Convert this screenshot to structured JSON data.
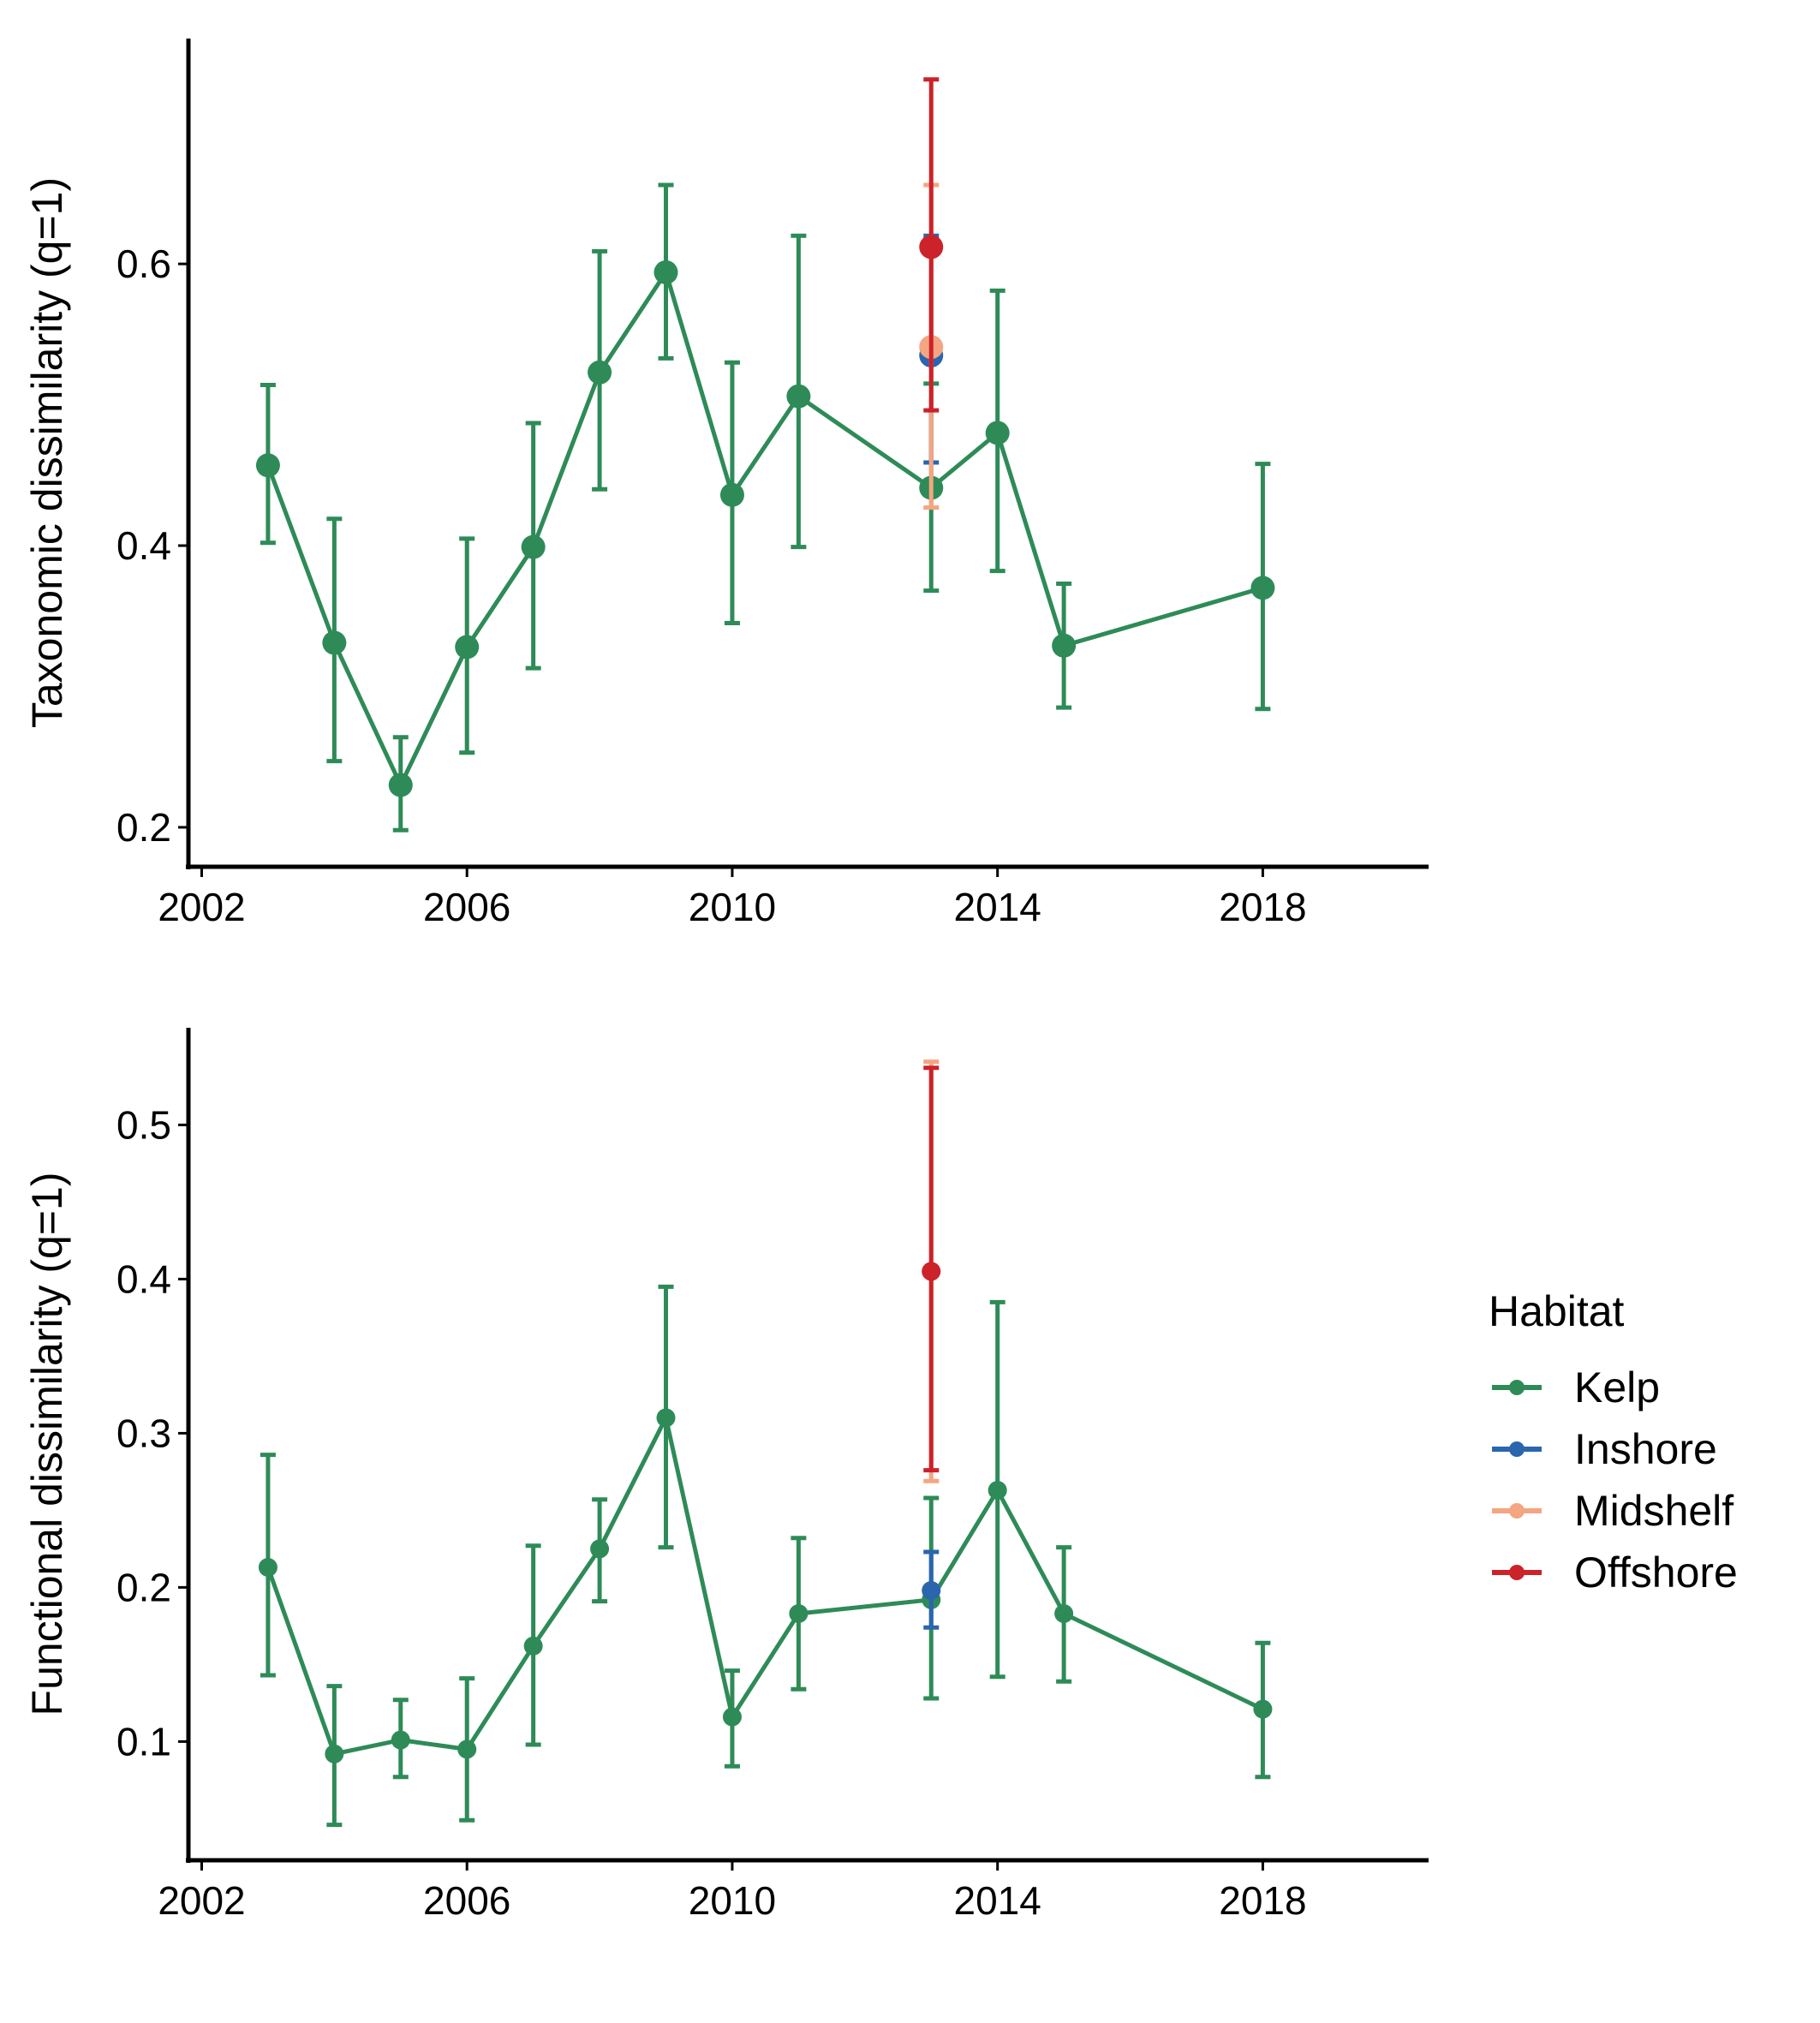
{
  "legend": {
    "title": "Habitat",
    "items": [
      {
        "label": "Kelp",
        "color": "#2E8B57"
      },
      {
        "label": "Inshore",
        "color": "#2B65AD"
      },
      {
        "label": "Midshelf",
        "color": "#F4A582"
      },
      {
        "label": "Offshore",
        "color": "#CC2229"
      }
    ]
  },
  "chart_data": [
    {
      "type": "line",
      "ylabel": "Taxonomic dissimilarity (q=1)",
      "xlabel": "",
      "x_ticks": [
        2002,
        2006,
        2010,
        2014,
        2018
      ],
      "y_ticks": [
        0.2,
        0.4,
        0.6
      ],
      "xlim": [
        2001.8,
        2020.5
      ],
      "ylim": [
        0.172,
        0.76
      ],
      "grid": false,
      "series": [
        {
          "name": "Kelp",
          "color": "#2E8B57",
          "connected": true,
          "points": [
            {
              "x": 2003,
              "y": 0.457,
              "lo": 0.402,
              "hi": 0.514
            },
            {
              "x": 2004,
              "y": 0.331,
              "lo": 0.247,
              "hi": 0.419
            },
            {
              "x": 2005,
              "y": 0.23,
              "lo": 0.198,
              "hi": 0.264
            },
            {
              "x": 2006,
              "y": 0.328,
              "lo": 0.253,
              "hi": 0.405
            },
            {
              "x": 2007,
              "y": 0.399,
              "lo": 0.313,
              "hi": 0.487
            },
            {
              "x": 2008,
              "y": 0.523,
              "lo": 0.44,
              "hi": 0.609
            },
            {
              "x": 2009,
              "y": 0.594,
              "lo": 0.533,
              "hi": 0.656
            },
            {
              "x": 2010,
              "y": 0.436,
              "lo": 0.345,
              "hi": 0.53
            },
            {
              "x": 2011,
              "y": 0.506,
              "lo": 0.399,
              "hi": 0.62
            },
            {
              "x": 2013,
              "y": 0.441,
              "lo": 0.368,
              "hi": 0.515
            },
            {
              "x": 2014,
              "y": 0.48,
              "lo": 0.382,
              "hi": 0.581
            },
            {
              "x": 2015,
              "y": 0.329,
              "lo": 0.285,
              "hi": 0.373
            },
            {
              "x": 2018,
              "y": 0.37,
              "lo": 0.284,
              "hi": 0.458
            }
          ]
        },
        {
          "name": "Inshore",
          "color": "#2B65AD",
          "connected": false,
          "points": [
            {
              "x": 2013,
              "y": 0.535,
              "lo": 0.459,
              "hi": 0.62
            }
          ]
        },
        {
          "name": "Midshelf",
          "color": "#F4A582",
          "connected": false,
          "points": [
            {
              "x": 2013,
              "y": 0.541,
              "lo": 0.427,
              "hi": 0.656
            }
          ]
        },
        {
          "name": "Offshore",
          "color": "#CC2229",
          "connected": false,
          "points": [
            {
              "x": 2013,
              "y": 0.612,
              "lo": 0.496,
              "hi": 0.731
            }
          ]
        }
      ]
    },
    {
      "type": "line",
      "ylabel": "Functional dissimilarity (q=1)",
      "xlabel": "",
      "x_ticks": [
        2002,
        2006,
        2010,
        2014,
        2018
      ],
      "y_ticks": [
        0.1,
        0.2,
        0.3,
        0.4,
        0.5
      ],
      "xlim": [
        2001.8,
        2020.5
      ],
      "ylim": [
        0.023,
        0.563
      ],
      "grid": false,
      "series": [
        {
          "name": "Kelp",
          "color": "#2E8B57",
          "connected": true,
          "points": [
            {
              "x": 2003,
              "y": 0.213,
              "lo": 0.143,
              "hi": 0.286
            },
            {
              "x": 2004,
              "y": 0.092,
              "lo": 0.046,
              "hi": 0.136
            },
            {
              "x": 2005,
              "y": 0.101,
              "lo": 0.077,
              "hi": 0.127
            },
            {
              "x": 2006,
              "y": 0.095,
              "lo": 0.049,
              "hi": 0.141
            },
            {
              "x": 2007,
              "y": 0.162,
              "lo": 0.098,
              "hi": 0.227
            },
            {
              "x": 2008,
              "y": 0.225,
              "lo": 0.191,
              "hi": 0.257
            },
            {
              "x": 2009,
              "y": 0.31,
              "lo": 0.226,
              "hi": 0.395
            },
            {
              "x": 2010,
              "y": 0.116,
              "lo": 0.084,
              "hi": 0.146
            },
            {
              "x": 2011,
              "y": 0.183,
              "lo": 0.134,
              "hi": 0.232
            },
            {
              "x": 2013,
              "y": 0.192,
              "lo": 0.128,
              "hi": 0.258
            },
            {
              "x": 2014,
              "y": 0.263,
              "lo": 0.142,
              "hi": 0.385
            },
            {
              "x": 2015,
              "y": 0.183,
              "lo": 0.139,
              "hi": 0.226
            },
            {
              "x": 2018,
              "y": 0.121,
              "lo": 0.077,
              "hi": 0.164
            }
          ]
        },
        {
          "name": "Inshore",
          "color": "#2B65AD",
          "connected": false,
          "points": [
            {
              "x": 2013,
              "y": 0.198,
              "lo": 0.174,
              "hi": 0.223
            }
          ]
        },
        {
          "name": "Midshelf",
          "color": "#F4A582",
          "connected": false,
          "points": [
            {
              "x": 2013,
              "y": 0.405,
              "lo": 0.269,
              "hi": 0.541
            }
          ]
        },
        {
          "name": "Offshore",
          "color": "#CC2229",
          "connected": false,
          "points": [
            {
              "x": 2013,
              "y": 0.405,
              "lo": 0.276,
              "hi": 0.537
            }
          ]
        }
      ]
    }
  ]
}
